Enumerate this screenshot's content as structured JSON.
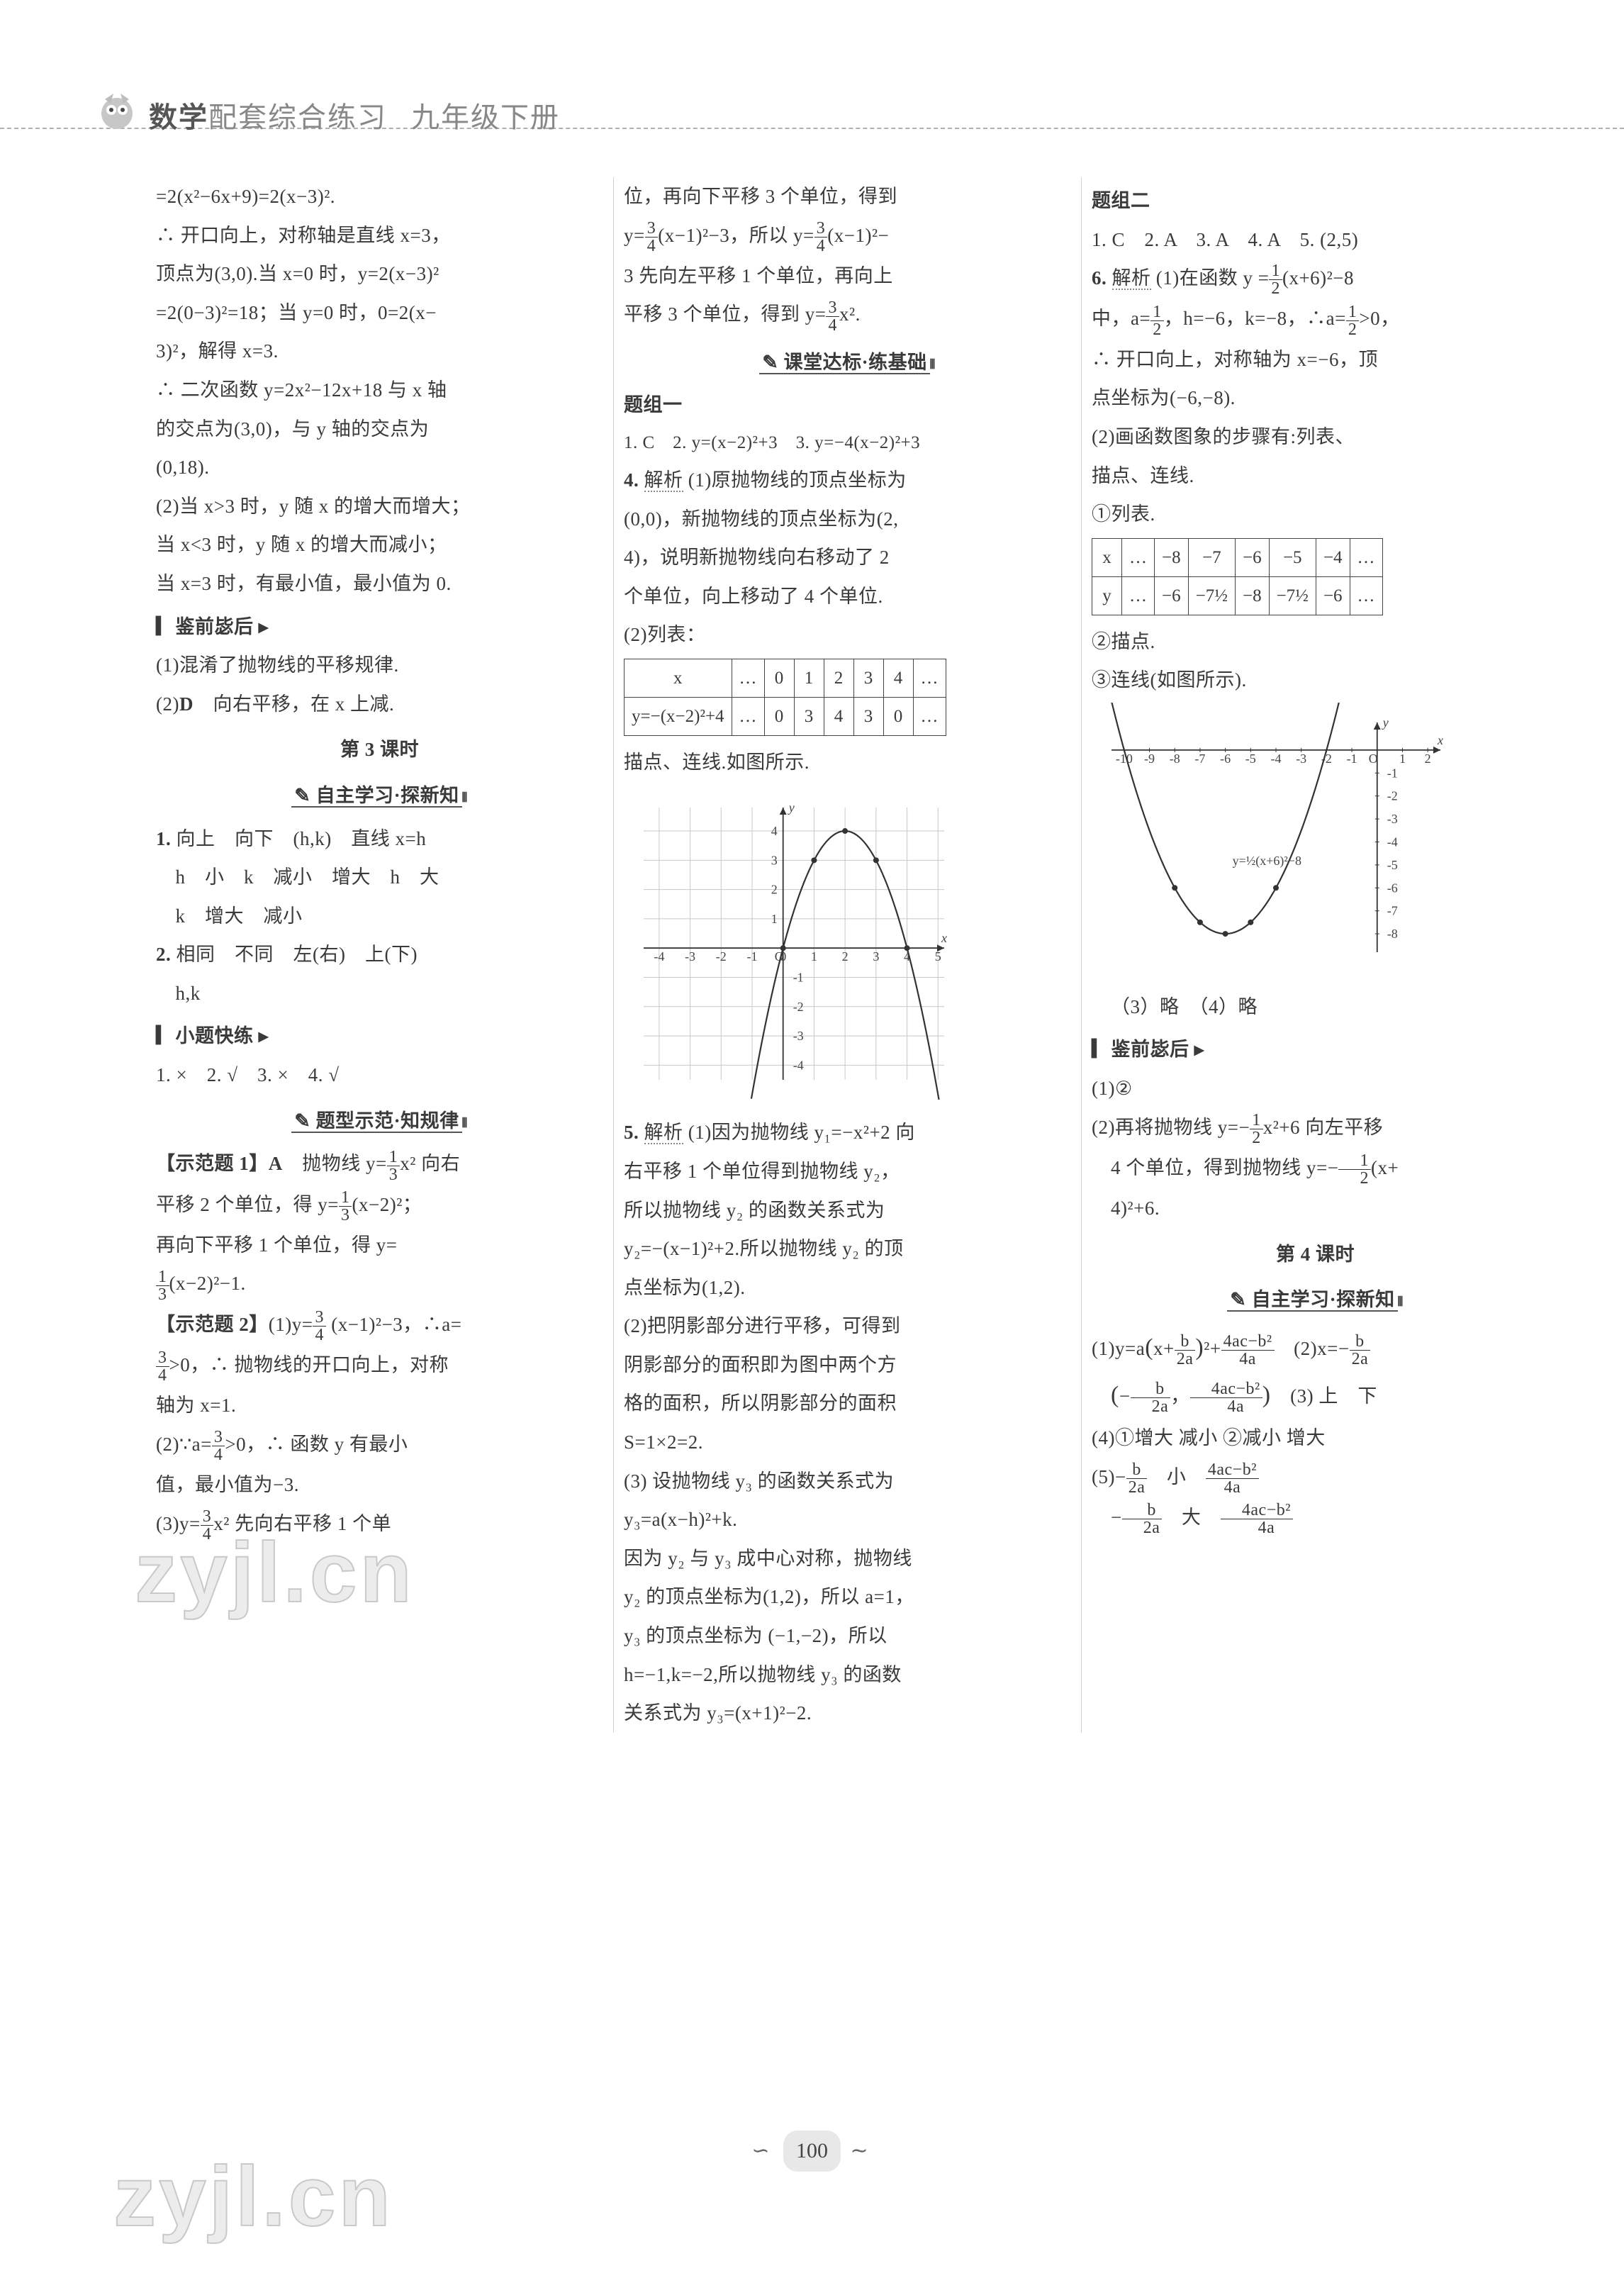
{
  "header": {
    "bold": "数学",
    "light1": "配套综合练习",
    "light2": "九年级下册"
  },
  "page_number": "100",
  "watermark_text": "zyjl.cn",
  "colors": {
    "text": "#3a3a3a",
    "rule": "#b0b0b0",
    "grid": "#c8c8c8",
    "axis": "#444444"
  },
  "col1": {
    "l01": "=2(x²−6x+9)=2(x−3)².",
    "l02": "∴ 开口向上，对称轴是直线 x=3，",
    "l03": "顶点为(3,0).当 x=0 时，y=2(x−3)²",
    "l04": "=2(0−3)²=18；当 y=0 时，0=2(x−",
    "l05": "3)²，解得 x=3.",
    "l06": "∴ 二次函数 y=2x²−12x+18 与 x 轴",
    "l07": "的交点为(3,0)，与 y 轴的交点为",
    "l08": "(0,18).",
    "l09": "(2)当 x>3 时，y 随 x 的增大而增大；",
    "l10": "当 x<3 时，y 随 x 的增大而减小；",
    "l11": "当 x=3 时，有最小值，最小值为 0.",
    "sec_jian": "鉴前毖后",
    "l12": "(1)混淆了抛物线的平移规律.",
    "l13_a": "(2)",
    "l13_b": "D",
    "l13_c": "　向右平移，在 x 上减.",
    "lesson3": "第 3 课时",
    "sec_zizhu": "自主学习·探新知",
    "z1a": "1.",
    "z1b": " 向上　向下　(h,k)　直线 x=h",
    "z1c": "　h　小　k　减小　增大　h　大",
    "z1d": "　k　增大　减小",
    "z2a": "2.",
    "z2b": " 相同　不同　左(右)　上(下)",
    "z2c": "　h,k",
    "sec_xiaoti": "小题快练",
    "xt": "1. ×　2. √　3. ×　4. √",
    "sec_tixing": "题型示范·知规律",
    "sf1_a": "【示范题 1】",
    "sf1_b": "A",
    "sf1_c": "　抛物线 y=",
    "sf1_d": "x² 向右",
    "sf1_e": "平移 2 个单位，得 y=",
    "sf1_f": "(x−2)²；",
    "sf1_g": "再向下平移 1 个单位，得 y=",
    "sf1_h": "(x−2)²−1.",
    "sf2_a": "【示范题 2】",
    "sf2_b": "(1)y=",
    "sf2_c": "(x−1)²−3，∴a=",
    "sf2_d": ">0，∴ 抛物线的开口向上，对称",
    "sf2_e": "轴为 x=1.",
    "sf2_f": "(2)∵a=",
    "sf2_g": ">0，∴ 函数 y 有最小",
    "sf2_h": "值，最小值为−3.",
    "sf2_i": "(3)y=",
    "sf2_j": "x² 先向右平移 1 个单"
  },
  "col2": {
    "l01": "位，再向下平移 3 个单位，得到",
    "l02a": "y=",
    "l02b": "(x−1)²−3，所以 y=",
    "l02c": "(x−1)²−",
    "l03": "3 先向左平移 1 个单位，再向上",
    "l04a": "平移 3 个单位，得到 y=",
    "l04b": "x².",
    "sec_ketang": "课堂达标·练基础",
    "tz1": "题组一",
    "q1": "1. C　2. y=(x−2)²+3　3. y=−4(x−2)²+3",
    "q4a": "4. ",
    "q4a2": "解析",
    "q4b": "(1)原抛物线的顶点坐标为",
    "q4c": "(0,0)，新抛物线的顶点坐标为(2,",
    "q4d": "4)，说明新抛物线向右移动了 2",
    "q4e": "个单位，向上移动了 4 个单位.",
    "q4f": "(2)列表：",
    "table1": {
      "r1": [
        "x",
        "…",
        "0",
        "1",
        "2",
        "3",
        "4",
        "…"
      ],
      "r2": [
        "y=−(x−2)²+4",
        "…",
        "0",
        "3",
        "4",
        "3",
        "0",
        "…"
      ]
    },
    "q4g": "描点、连线.如图所示.",
    "graph1": {
      "xlim": [
        -4.5,
        5.2
      ],
      "ylim": [
        -4.5,
        4.8
      ],
      "xticks": [
        -4,
        -3,
        -2,
        -1,
        0,
        1,
        2,
        3,
        4,
        5
      ],
      "yticks": [
        -4,
        -3,
        -2,
        -1,
        1,
        2,
        3,
        4
      ],
      "parabola_a": -1,
      "parabola_h": 2,
      "parabola_k": 4,
      "point_list": [
        [
          0,
          0
        ],
        [
          1,
          3
        ],
        [
          2,
          4
        ],
        [
          3,
          3
        ],
        [
          4,
          0
        ]
      ],
      "bg": "#ffffff"
    },
    "q5a": "5. ",
    "q5a2": "解析",
    "q5b": "(1)因为抛物线 y₁=−x²+2 向",
    "q5c": "右平移 1 个单位得到抛物线 y₂，",
    "q5d": "所以抛物线 y₂ 的函数关系式为",
    "q5e": "y₂=−(x−1)²+2.所以抛物线 y₂ 的顶",
    "q5f": "点坐标为(1,2).",
    "q5g": "(2)把阴影部分进行平移，可得到",
    "q5h": "阴影部分的面积即为图中两个方",
    "q5i": "格的面积，所以阴影部分的面积",
    "q5j": "S=1×2=2.",
    "q5k": "(3) 设抛物线 y₃ 的函数关系式为",
    "q5l": "y₃=a(x−h)²+k.",
    "q5m": "因为 y₂ 与 y₃ 成中心对称，抛物线",
    "q5n": "y₂ 的顶点坐标为(1,2)，所以 a=1，",
    "q5o": "y₃ 的顶点坐标为 (−1,−2)，所以",
    "q5p": "h=−1,k=−2,所以抛物线 y₃ 的函数",
    "q5q": "关系式为 y₃=(x+1)²−2."
  },
  "col3": {
    "tz2": "题组二",
    "q1_5": "1. C　2. A　3. A　4. A　5. (2,5)",
    "q6a": "6. ",
    "q6a2": "解析",
    "q6b": "(1)在函数 y =",
    "q6c": "(x+6)²−8",
    "q6d": "中，a=",
    "q6e": "，h=−6，k=−8，∴a=",
    "q6f": ">0，",
    "q6g": "∴ 开口向上，对称轴为 x=−6，顶",
    "q6h": "点坐标为(−6,−8).",
    "q6i": "(2)画函数图象的步骤有:列表、",
    "q6j": "描点、连线.",
    "q6k": "①列表.",
    "table2": {
      "r1": [
        "x",
        "…",
        "−8",
        "−7",
        "−6",
        "−5",
        "−4",
        "…"
      ],
      "r2": [
        "y",
        "…",
        "−6",
        "−7½",
        "−8",
        "−7½",
        "−6",
        "…"
      ]
    },
    "q6l": "②描点.",
    "q6m": "③连线(如图所示).",
    "graph2": {
      "xlim": [
        -10.5,
        2.5
      ],
      "ylim": [
        -8.8,
        1.2
      ],
      "xticks": [
        -10,
        -9,
        -8,
        -7,
        -6,
        -5,
        -4,
        -3,
        -2,
        -1,
        1,
        2
      ],
      "yticks": [
        -8,
        -7,
        -6,
        -5,
        -4,
        -3,
        -2,
        -1
      ],
      "parabola_a": 0.5,
      "parabola_h": -6,
      "parabola_k": -8,
      "label": "y=½(x+6)²−8",
      "point_list": [
        [
          -8,
          -6
        ],
        [
          -7,
          -7.5
        ],
        [
          -6,
          -8
        ],
        [
          -5,
          -7.5
        ],
        [
          -4,
          -6
        ]
      ]
    },
    "q6n": "（3）略　（4）略",
    "sec_jian": "鉴前毖后",
    "j1": "(1)②",
    "j2a": "(2)再将抛物线 y=−",
    "j2b": "x²+6 向左平移",
    "j2c": "4 个单位，得到抛物线 y=−",
    "j2d": "(x+",
    "j2e": "4)²+6.",
    "lesson4": "第 4 课时",
    "sec_zizhu": "自主学习·探新知",
    "z1a": "(1)y=a",
    "z1b": "+",
    "z1c": "　(2)x=−",
    "z1d": "　(3) 上　下",
    "z4": "(4)①增大 减小 ②减小 增大",
    "z5a": "(5)−",
    "z5b": "　小　",
    "z5c": "−",
    "z5d": "　大　"
  }
}
